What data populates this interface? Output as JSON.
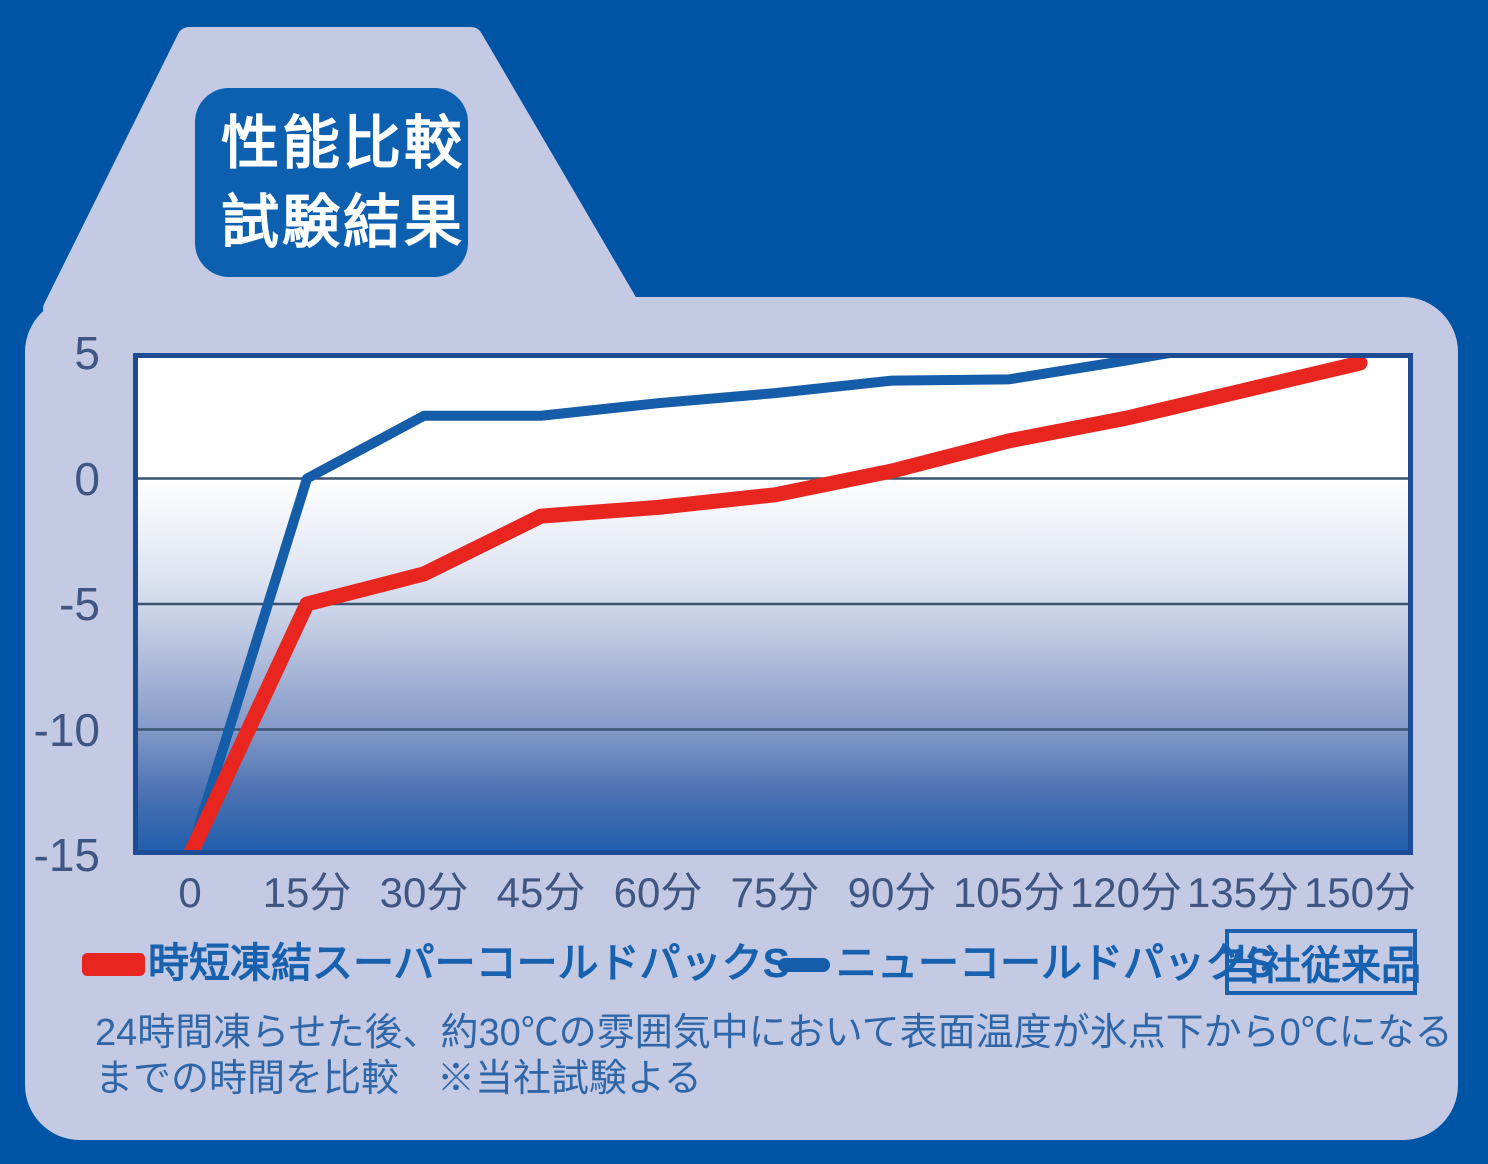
{
  "badge": {
    "line1": "性能比較",
    "line2": "試験結果"
  },
  "legend": {
    "series1_label": "時短凍結スーパーコールドパックS",
    "series2_label": "ニューコールドパックS",
    "series2_tag": "当社従来品"
  },
  "note": {
    "line1": "24時間凍らせた後、約30℃の雰囲気中において表面温度が氷点下から0℃になる",
    "line2": "までの時間を比較　※当社試験よる"
  },
  "colors": {
    "background": "#0054a5",
    "panel": "#c5cae4",
    "badge_fill": "#0c60af",
    "red_line": "#e8251e",
    "blue_line": "#155da8",
    "plot_border": "#1b4c94",
    "grid_line": "#3a5570",
    "axis_text": "#3f5582",
    "legend_text": "#1761ae",
    "note_text": "#2f66a8"
  },
  "chart_data": {
    "type": "line",
    "title": "性能比較試験結果",
    "xlabel": "",
    "ylabel": "",
    "x_unit": "分",
    "x": [
      0,
      15,
      30,
      45,
      60,
      75,
      90,
      105,
      120,
      135,
      150
    ],
    "x_tick_labels": [
      "0",
      "15分",
      "30分",
      "45分",
      "60分",
      "75分",
      "90分",
      "105分",
      "120分",
      "135分",
      "150分"
    ],
    "y_tick_values": [
      5,
      0,
      -5,
      -10,
      -15
    ],
    "y_tick_labels": [
      "5",
      "0",
      "-5",
      "-10",
      "-15"
    ],
    "ylim": [
      -15,
      5
    ],
    "grid": "horizontal",
    "legend_position": "bottom",
    "clip_above": 5,
    "series": [
      {
        "name": "時短凍結スーパーコールドパックS",
        "color": "#e8251e",
        "stroke_width": 15,
        "values": [
          -15,
          -5,
          -3.8,
          -1.5,
          -1.15,
          -0.65,
          0.3,
          1.5,
          2.4,
          3.5,
          4.6
        ]
      },
      {
        "name": "ニューコールドパックS（当社従来品）",
        "color": "#155da8",
        "stroke_width": 10,
        "values": [
          -15,
          0,
          2.5,
          2.5,
          3.0,
          3.4,
          3.9,
          3.95,
          4.7,
          5.5,
          5.7
        ]
      }
    ]
  }
}
